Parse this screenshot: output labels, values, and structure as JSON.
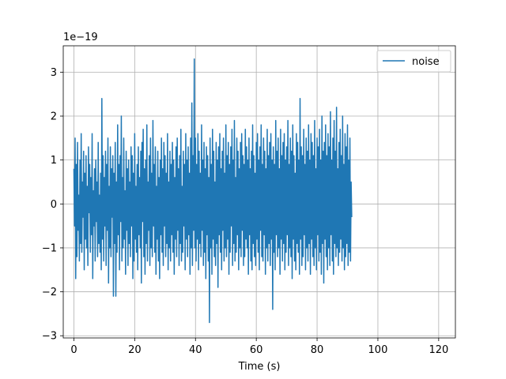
{
  "chart_data": {
    "type": "line",
    "title": "",
    "xlabel": "Time (s)",
    "ylabel": "",
    "y_offset_label": "1e−19",
    "xlim": [
      -3.5,
      125.5
    ],
    "ylim": [
      -3.05,
      3.6
    ],
    "x_ticks": [
      0,
      20,
      40,
      60,
      80,
      100,
      120
    ],
    "x_tick_labels": [
      "0",
      "20",
      "40",
      "60",
      "80",
      "100",
      "120"
    ],
    "y_ticks": [
      -3,
      -2,
      -1,
      0,
      1,
      2,
      3
    ],
    "y_tick_labels": [
      "−3",
      "−2",
      "−1",
      "0",
      "1",
      "2",
      "3"
    ],
    "grid": true,
    "legend_position": "upper right",
    "series": [
      {
        "name": "noise",
        "color": "#1f77b4",
        "x_start": 0,
        "x_step": 0.2,
        "y": [
          0.8,
          -0.5,
          1.5,
          -1.7,
          0.9,
          -1.2,
          1.4,
          -0.6,
          0.2,
          -1.3,
          1.0,
          -0.9,
          1.6,
          -1.1,
          0.5,
          -0.3,
          1.2,
          -1.5,
          0.7,
          -0.8,
          1.1,
          -1.0,
          0.4,
          -1.4,
          1.3,
          -0.2,
          0.9,
          -1.1,
          0.6,
          -0.7,
          1.6,
          -1.7,
          0.3,
          -0.5,
          0.8,
          -1.3,
          1.0,
          -0.4,
          0.5,
          -1.2,
          1.4,
          -0.9,
          0.2,
          -1.1,
          0.7,
          -1.5,
          2.4,
          -0.8,
          1.1,
          -1.3,
          0.6,
          -0.5,
          1.2,
          -1.4,
          0.9,
          -0.6,
          1.5,
          -1.8,
          0.4,
          -1.0,
          1.3,
          -1.2,
          0.8,
          -0.3,
          1.1,
          -2.1,
          0.7,
          -0.9,
          1.4,
          -2.1,
          0.5,
          -1.1,
          1.8,
          -0.7,
          0.9,
          -1.5,
          1.1,
          -0.4,
          2.0,
          -1.3,
          0.6,
          -1.0,
          1.5,
          -0.8,
          0.3,
          -1.6,
          1.2,
          -0.6,
          0.8,
          -1.4,
          1.0,
          -0.9,
          0.5,
          -1.2,
          1.3,
          -0.5,
          1.1,
          -1.7,
          0.7,
          -1.3,
          1.6,
          -0.8,
          0.4,
          -1.1,
          0.9,
          -1.5,
          1.3,
          -0.7,
          0.6,
          -1.0,
          1.2,
          -1.8,
          1.4,
          -0.4,
          1.7,
          -1.2,
          0.8,
          -1.6,
          1.0,
          -0.9,
          1.8,
          -1.3,
          0.5,
          -0.6,
          1.1,
          -1.4,
          1.5,
          -1.0,
          0.7,
          -1.2,
          1.9,
          -0.5,
          0.9,
          -1.1,
          1.3,
          -1.6,
          0.4,
          -0.8,
          1.2,
          -1.3,
          0.6,
          -1.7,
          1.0,
          -0.7,
          1.5,
          -1.1,
          0.8,
          -1.4,
          1.4,
          -0.5,
          1.1,
          -1.2,
          0.7,
          -0.9,
          1.6,
          -1.5,
          0.5,
          -1.0,
          1.2,
          -1.3,
          0.9,
          -0.7,
          1.4,
          -1.1,
          1.0,
          -1.6,
          0.6,
          -0.8,
          1.3,
          -1.2,
          1.5,
          -0.6,
          0.8,
          -1.4,
          1.1,
          -0.9,
          1.7,
          -1.3,
          0.4,
          -1.1,
          1.2,
          -0.5,
          0.9,
          -1.5,
          1.6,
          -0.8,
          1.0,
          -1.2,
          1.3,
          -0.7,
          0.7,
          -1.6,
          1.5,
          -1.0,
          2.3,
          -1.4,
          1.1,
          -0.6,
          3.3,
          -1.0,
          1.5,
          -1.3,
          0.9,
          -0.8,
          1.6,
          -1.5,
          1.2,
          -0.9,
          0.7,
          -1.2,
          1.8,
          -0.6,
          1.0,
          -1.4,
          1.4,
          -1.1,
          0.8,
          -1.7,
          1.3,
          -0.7,
          1.1,
          -1.3,
          0.6,
          -2.7,
          1.5,
          -1.0,
          0.9,
          -1.6,
          1.7,
          -0.8,
          1.2,
          -1.2,
          0.5,
          -1.4,
          1.4,
          -0.9,
          1.0,
          -1.9,
          1.3,
          -0.7,
          1.6,
          -1.1,
          0.8,
          -1.5,
          1.2,
          -0.6,
          1.5,
          -1.3,
          0.7,
          -1.0,
          1.8,
          -1.2,
          1.1,
          -0.8,
          1.4,
          -1.6,
          0.9,
          -1.1,
          1.3,
          -0.5,
          1.7,
          -1.4,
          1.0,
          -0.9,
          1.9,
          -1.3,
          0.6,
          -1.1,
          1.5,
          -0.7,
          1.2,
          -1.5,
          0.8,
          -1.0,
          1.4,
          -1.2,
          1.6,
          -0.6,
          1.1,
          -1.4,
          0.9,
          -1.2,
          1.7,
          -0.8,
          1.3,
          -1.0,
          1.0,
          -1.6,
          1.5,
          -0.7,
          0.8,
          -1.3,
          1.2,
          -1.5,
          1.8,
          -0.9,
          1.1,
          -1.2,
          0.7,
          -1.4,
          1.4,
          -0.8,
          1.6,
          -1.1,
          1.0,
          -1.5,
          1.3,
          -0.6,
          1.8,
          -1.2,
          0.9,
          -1.3,
          1.5,
          -0.7,
          1.2,
          -1.6,
          0.8,
          -1.0,
          1.7,
          -1.3,
          1.1,
          -0.9,
          1.4,
          -1.4,
          1.6,
          -0.8,
          1.0,
          -2.4,
          1.3,
          -1.1,
          0.9,
          -1.5,
          1.9,
          -0.7,
          1.2,
          -1.2,
          1.5,
          -1.0,
          0.8,
          -1.6,
          1.7,
          -0.8,
          1.1,
          -1.3,
          1.4,
          -0.9,
          1.6,
          -1.5,
          1.0,
          -1.1,
          1.3,
          -0.7,
          1.9,
          -1.4,
          0.9,
          -1.0,
          1.5,
          -1.2,
          1.2,
          -1.7,
          1.8,
          -0.8,
          1.1,
          -1.3,
          0.7,
          -1.5,
          1.6,
          -0.9,
          1.4,
          -1.1,
          1.0,
          -1.6,
          2.4,
          -0.8,
          1.3,
          -1.4,
          1.1,
          -1.2,
          1.7,
          -0.7,
          0.9,
          -1.5,
          1.5,
          -1.0,
          1.2,
          -1.3,
          1.8,
          -0.9,
          1.0,
          -1.6,
          1.6,
          -0.8,
          1.4,
          -1.2,
          1.1,
          -1.4,
          1.9,
          -1.0,
          0.8,
          -1.5,
          1.5,
          -0.7,
          1.3,
          -1.3,
          1.7,
          -1.1,
          1.0,
          -1.6,
          2.0,
          -0.9,
          1.2,
          -1.8,
          1.4,
          -0.8,
          1.8,
          -1.2,
          1.1,
          -1.5,
          1.6,
          -1.0,
          1.3,
          -1.4,
          2.1,
          -0.7,
          1.0,
          -1.3,
          1.5,
          -1.6,
          1.9,
          -0.9,
          1.2,
          -1.2,
          2.2,
          -1.0,
          0.8,
          -1.4,
          1.4,
          -1.1,
          1.7,
          -0.8,
          1.1,
          -1.3,
          2.0,
          -1.0,
          0.9,
          -1.5,
          1.6,
          -1.2,
          1.3,
          -0.9,
          1.8,
          -1.4,
          1.0,
          -1.1,
          1.5,
          -1.3,
          0.5,
          -0.3
        ]
      }
    ]
  }
}
